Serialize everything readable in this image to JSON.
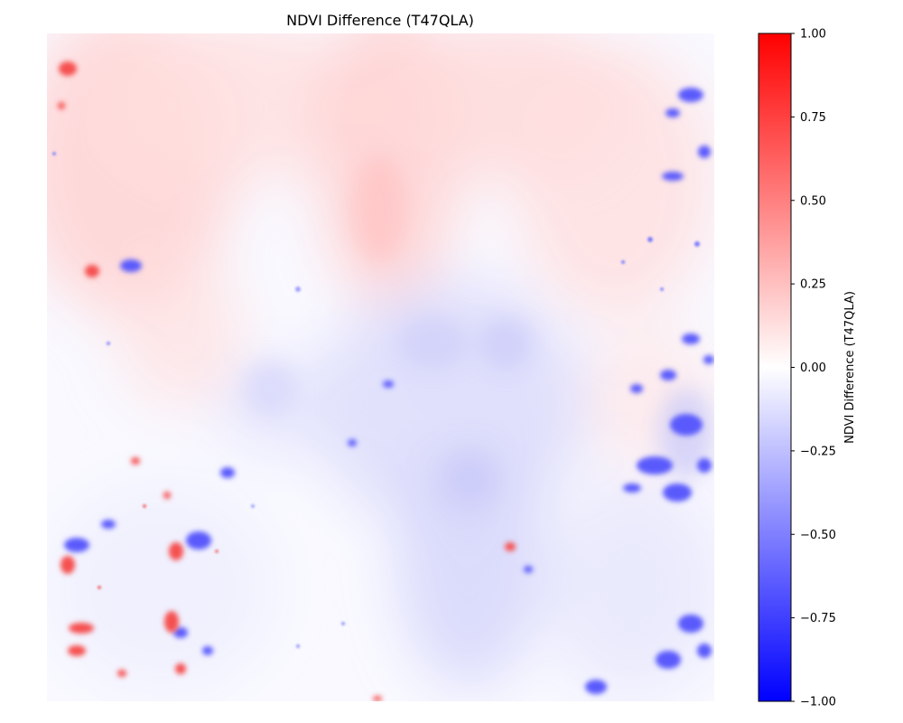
{
  "chart_data": {
    "type": "heatmap",
    "title": "NDVI Difference (T47QLA)",
    "colorbar": {
      "label": "NDVI Difference (T47QLA)",
      "vmin": -1.0,
      "vmax": 1.0,
      "ticks": [
        1.0,
        0.75,
        0.5,
        0.25,
        0.0,
        -0.25,
        -0.5,
        -0.75,
        -1.0
      ],
      "tick_labels": [
        "1.00",
        "0.75",
        "0.50",
        "0.25",
        "0.00",
        "−0.25",
        "−0.50",
        "−0.75",
        "−1.00"
      ],
      "colormap": "bwr",
      "colors": {
        "low": "#0000ff",
        "mid": "#ffffff",
        "high": "#ff0000"
      }
    },
    "axes": {
      "visible": false
    },
    "grid": false
  }
}
